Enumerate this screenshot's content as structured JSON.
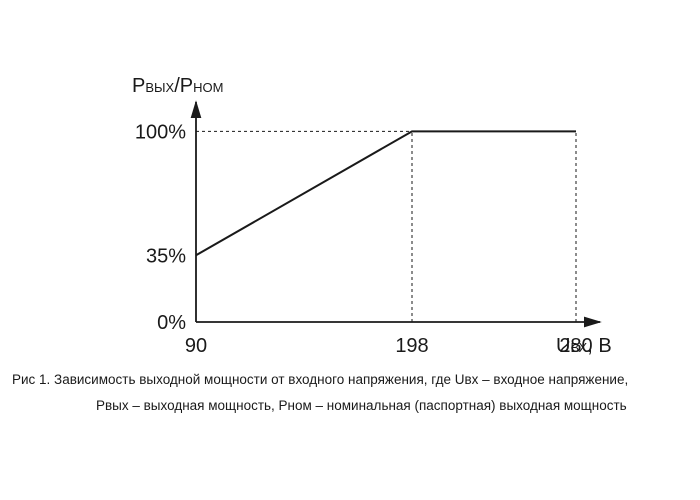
{
  "chart_data": {
    "type": "line",
    "title": "",
    "ylabel": {
      "main_1": "P",
      "sub_1": "ВЫХ",
      "sep": "/",
      "main_2": "P",
      "sub_2": "НОМ"
    },
    "xlabel": {
      "main": "U",
      "sub": "ВХ",
      "unit": ", В"
    },
    "x_ticks": [
      {
        "value": 90,
        "label": "90"
      },
      {
        "value": 198,
        "label": "198"
      },
      {
        "value": 280,
        "label": "280"
      }
    ],
    "y_ticks": [
      {
        "value": 0,
        "label": "0%"
      },
      {
        "value": 35,
        "label": "35%"
      },
      {
        "value": 100,
        "label": "100%"
      }
    ],
    "xlim": [
      90,
      302
    ],
    "ylim": [
      0,
      128
    ],
    "series": [
      {
        "x": [
          90,
          198,
          280
        ],
        "y": [
          35,
          100,
          100
        ],
        "color": "#1a1a1a"
      }
    ],
    "reference_lines": [
      {
        "from": [
          90,
          100
        ],
        "to": [
          198,
          100
        ],
        "style": "dashed"
      },
      {
        "from": [
          198,
          0
        ],
        "to": [
          198,
          100
        ],
        "style": "dashed"
      },
      {
        "from": [
          280,
          0
        ],
        "to": [
          280,
          100
        ],
        "style": "dashed"
      }
    ]
  },
  "caption": {
    "line_1": "Рис 1. Зависимость выходной мощности от входного напряжения, где Uвх – входное напряжение,",
    "line_2": "Pвых – выходная мощность, Pном – номинальная (паспортная) выходная мощность"
  }
}
